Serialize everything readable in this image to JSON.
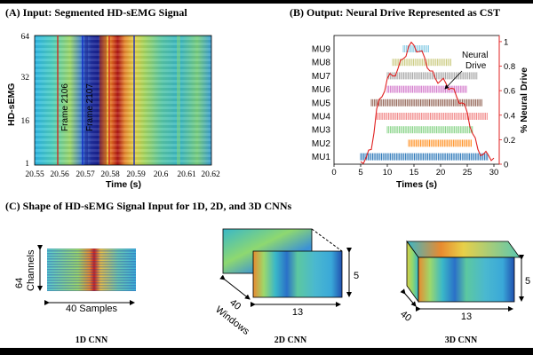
{
  "panel_a": {
    "title": "(A) Input: Segmented HD-sEMG Signal",
    "ylabel": "HD-sEMG",
    "xlabel": "Time (s)",
    "y_ticks": [
      "64",
      "32",
      "16",
      "1"
    ],
    "x_ticks": [
      "20.55",
      "20.56",
      "20.57",
      "20.58",
      "20.59",
      "20.6",
      "20.61",
      "20.62"
    ],
    "frame_labels": [
      "Frame 2106",
      "Frame 2107"
    ]
  },
  "panel_b": {
    "title": "(B) Output: Neural Drive Represented as CST",
    "xlabel": "Times (s)",
    "ylabel_right": "% Neural Drive",
    "annotation": "Neural Drive",
    "motor_units": [
      "MU9",
      "MU8",
      "MU7",
      "MU6",
      "MU5",
      "MU4",
      "MU3",
      "MU2",
      "MU1"
    ],
    "mu_colors": [
      "#7ec8e3",
      "#c8c87a",
      "#a0a0a0",
      "#d070c8",
      "#8b5a4a",
      "#f08080",
      "#7fd07f",
      "#ff8c1a",
      "#1f6fb4"
    ],
    "x_ticks": [
      "0",
      "5",
      "10",
      "15",
      "20",
      "25",
      "30"
    ],
    "right_ticks": [
      "0",
      "0.2",
      "0.4",
      "0.6",
      "0.8",
      "1"
    ],
    "accent": "#e02020"
  },
  "chart_data": {
    "type": "line",
    "title": "(B) Output: Neural Drive Represented as CST",
    "xlabel": "Times (s)",
    "ylabel": "% Neural Drive",
    "xlim": [
      0,
      31
    ],
    "ylim": [
      0,
      1.05
    ],
    "series": [
      {
        "name": "Neural Drive",
        "x": [
          5,
          6,
          7,
          8,
          9,
          10,
          11,
          12,
          13,
          14,
          15,
          16,
          17,
          18,
          19,
          20,
          21,
          22,
          23,
          24,
          25,
          26,
          27,
          28,
          29,
          30
        ],
        "y": [
          0.02,
          0.05,
          0.12,
          0.45,
          0.55,
          0.7,
          0.72,
          0.78,
          0.86,
          0.96,
          0.97,
          0.92,
          0.87,
          0.76,
          0.7,
          0.68,
          0.66,
          0.62,
          0.55,
          0.5,
          0.42,
          0.25,
          0.12,
          0.08,
          0.07,
          0.05
        ]
      }
    ],
    "spike_trains": [
      {
        "name": "MU9",
        "start": 13,
        "end": 18
      },
      {
        "name": "MU8",
        "start": 11,
        "end": 22
      },
      {
        "name": "MU7",
        "start": 10,
        "end": 27
      },
      {
        "name": "MU6",
        "start": 10,
        "end": 25
      },
      {
        "name": "MU5",
        "start": 7,
        "end": 28
      },
      {
        "name": "MU4",
        "start": 8,
        "end": 29
      },
      {
        "name": "MU3",
        "start": 10,
        "end": 26
      },
      {
        "name": "MU2",
        "start": 14,
        "end": 26
      },
      {
        "name": "MU1",
        "start": 5,
        "end": 29
      }
    ]
  },
  "panel_c": {
    "title": "(C) Shape of HD-sEMG Signal Input for 1D, 2D, and 3D CNNs",
    "cnn1": {
      "caption": "1D CNN",
      "dim_channels": "64",
      "channels_label": "Channels",
      "samples_label": "40 Samples"
    },
    "cnn2": {
      "caption": "2D CNN",
      "dim_height": "5",
      "dim_width": "13",
      "dim_windows": "40",
      "windows_label": "Windows"
    },
    "cnn3": {
      "caption": "3D CNN",
      "dim_height": "5",
      "dim_width": "13",
      "dim_depth": "40"
    }
  }
}
